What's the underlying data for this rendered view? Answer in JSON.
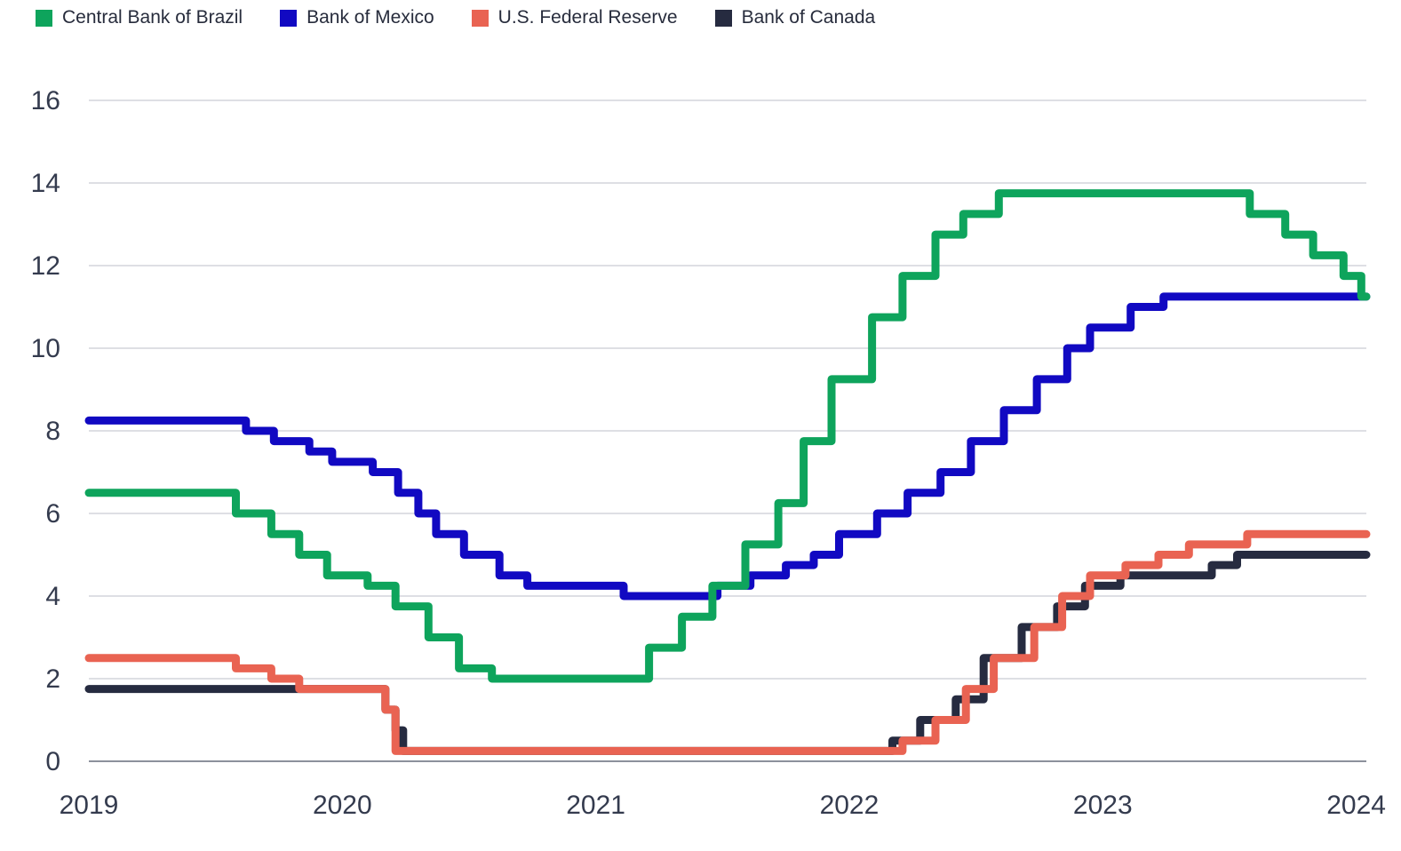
{
  "chart_data": {
    "type": "line",
    "subtype": "step-after",
    "title": "",
    "xlabel": "",
    "ylabel": "",
    "xlim": [
      2019,
      2024.04
    ],
    "ylim": [
      0,
      16
    ],
    "grid": "horizontal",
    "legend_position": "top-left",
    "x_axis": {
      "ticks": [
        {
          "v": 2019,
          "label": "2019"
        },
        {
          "v": 2020,
          "label": "2020"
        },
        {
          "v": 2021,
          "label": "2021"
        },
        {
          "v": 2022,
          "label": "2022"
        },
        {
          "v": 2023,
          "label": "2023"
        },
        {
          "v": 2024,
          "label": "2024"
        }
      ]
    },
    "y_axis": {
      "ticks": [
        {
          "v": 0,
          "label": "0"
        },
        {
          "v": 2,
          "label": "2"
        },
        {
          "v": 4,
          "label": "4"
        },
        {
          "v": 6,
          "label": "6"
        },
        {
          "v": 8,
          "label": "8"
        },
        {
          "v": 10,
          "label": "10"
        },
        {
          "v": 12,
          "label": "12"
        },
        {
          "v": 14,
          "label": "14"
        },
        {
          "v": 16,
          "label": "16"
        }
      ]
    },
    "series": [
      {
        "name": "Central Bank of Brazil",
        "color": "#0EA45C",
        "points": [
          [
            2019.0,
            6.5
          ],
          [
            2019.58,
            6.0
          ],
          [
            2019.72,
            5.5
          ],
          [
            2019.83,
            5.0
          ],
          [
            2019.94,
            4.5
          ],
          [
            2020.1,
            4.25
          ],
          [
            2020.21,
            3.75
          ],
          [
            2020.34,
            3.0
          ],
          [
            2020.46,
            2.25
          ],
          [
            2020.59,
            2.0
          ],
          [
            2021.21,
            2.75
          ],
          [
            2021.34,
            3.5
          ],
          [
            2021.46,
            4.25
          ],
          [
            2021.59,
            5.25
          ],
          [
            2021.72,
            6.25
          ],
          [
            2021.82,
            7.75
          ],
          [
            2021.93,
            9.25
          ],
          [
            2022.09,
            10.75
          ],
          [
            2022.21,
            11.75
          ],
          [
            2022.34,
            12.75
          ],
          [
            2022.45,
            13.25
          ],
          [
            2022.59,
            13.75
          ],
          [
            2023.58,
            13.25
          ],
          [
            2023.72,
            12.75
          ],
          [
            2023.83,
            12.25
          ],
          [
            2023.95,
            11.75
          ],
          [
            2024.02,
            11.25
          ]
        ]
      },
      {
        "name": "Bank of Mexico",
        "color": "#1109C2",
        "points": [
          [
            2019.0,
            8.25
          ],
          [
            2019.62,
            8.0
          ],
          [
            2019.73,
            7.75
          ],
          [
            2019.87,
            7.5
          ],
          [
            2019.96,
            7.25
          ],
          [
            2020.12,
            7.0
          ],
          [
            2020.22,
            6.5
          ],
          [
            2020.3,
            6.0
          ],
          [
            2020.37,
            5.5
          ],
          [
            2020.48,
            5.0
          ],
          [
            2020.62,
            4.5
          ],
          [
            2020.73,
            4.25
          ],
          [
            2021.11,
            4.0
          ],
          [
            2021.48,
            4.25
          ],
          [
            2021.61,
            4.5
          ],
          [
            2021.75,
            4.75
          ],
          [
            2021.86,
            5.0
          ],
          [
            2021.96,
            5.5
          ],
          [
            2022.11,
            6.0
          ],
          [
            2022.23,
            6.5
          ],
          [
            2022.36,
            7.0
          ],
          [
            2022.48,
            7.75
          ],
          [
            2022.61,
            8.5
          ],
          [
            2022.74,
            9.25
          ],
          [
            2022.86,
            10.0
          ],
          [
            2022.95,
            10.5
          ],
          [
            2023.11,
            11.0
          ],
          [
            2023.24,
            11.25
          ]
        ]
      },
      {
        "name": "U.S. Federal Reserve",
        "color": "#E96352",
        "points": [
          [
            2019.0,
            2.5
          ],
          [
            2019.58,
            2.25
          ],
          [
            2019.72,
            2.0
          ],
          [
            2019.83,
            1.75
          ],
          [
            2020.17,
            1.25
          ],
          [
            2020.21,
            0.25
          ],
          [
            2022.21,
            0.5
          ],
          [
            2022.34,
            1.0
          ],
          [
            2022.46,
            1.75
          ],
          [
            2022.57,
            2.5
          ],
          [
            2022.73,
            3.25
          ],
          [
            2022.84,
            4.0
          ],
          [
            2022.95,
            4.5
          ],
          [
            2023.09,
            4.75
          ],
          [
            2023.22,
            5.0
          ],
          [
            2023.34,
            5.25
          ],
          [
            2023.57,
            5.5
          ]
        ]
      },
      {
        "name": "Bank of Canada",
        "color": "#262B40",
        "points": [
          [
            2019.0,
            1.75
          ],
          [
            2020.17,
            1.25
          ],
          [
            2020.21,
            0.75
          ],
          [
            2020.24,
            0.25
          ],
          [
            2022.17,
            0.5
          ],
          [
            2022.28,
            1.0
          ],
          [
            2022.42,
            1.5
          ],
          [
            2022.53,
            2.5
          ],
          [
            2022.68,
            3.25
          ],
          [
            2022.82,
            3.75
          ],
          [
            2022.93,
            4.25
          ],
          [
            2023.07,
            4.5
          ],
          [
            2023.43,
            4.75
          ],
          [
            2023.53,
            5.0
          ]
        ]
      }
    ]
  }
}
